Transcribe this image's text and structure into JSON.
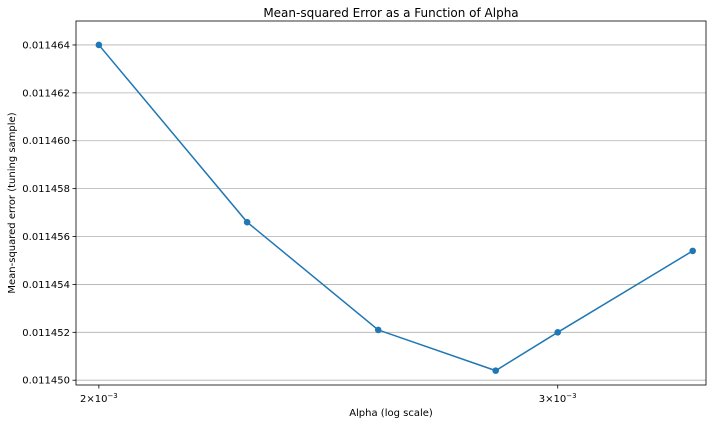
{
  "chart_data": {
    "type": "line",
    "title": "Mean-squared Error as a Function of Alpha",
    "xlabel": "Alpha (log scale)",
    "ylabel": "Mean-squared error (tuning sample)",
    "x_scale": "log",
    "y_scale": "linear",
    "xlim": [
      0.00196,
      0.00342
    ],
    "ylim": [
      0.0114498,
      0.011465
    ],
    "x_ticks": [
      {
        "value": 0.002,
        "base": "2",
        "exp": "−3"
      },
      {
        "value": 0.003,
        "base": "3",
        "exp": "−3"
      }
    ],
    "y_ticks": [
      {
        "value": 0.01145,
        "label": "0.011450"
      },
      {
        "value": 0.011452,
        "label": "0.011452"
      },
      {
        "value": 0.011454,
        "label": "0.011454"
      },
      {
        "value": 0.011456,
        "label": "0.011456"
      },
      {
        "value": 0.011458,
        "label": "0.011458"
      },
      {
        "value": 0.01146,
        "label": "0.011460"
      },
      {
        "value": 0.011462,
        "label": "0.011462"
      },
      {
        "value": 0.011464,
        "label": "0.011464"
      }
    ],
    "grid": "y-major",
    "series": [
      {
        "color": "#1f77b4",
        "marker": "circle",
        "x": [
          0.002,
          0.00228,
          0.00256,
          0.00284,
          0.003,
          0.00338
        ],
        "y": [
          0.011464,
          0.0114566,
          0.0114521,
          0.0114504,
          0.011452,
          0.0114554
        ]
      }
    ]
  }
}
